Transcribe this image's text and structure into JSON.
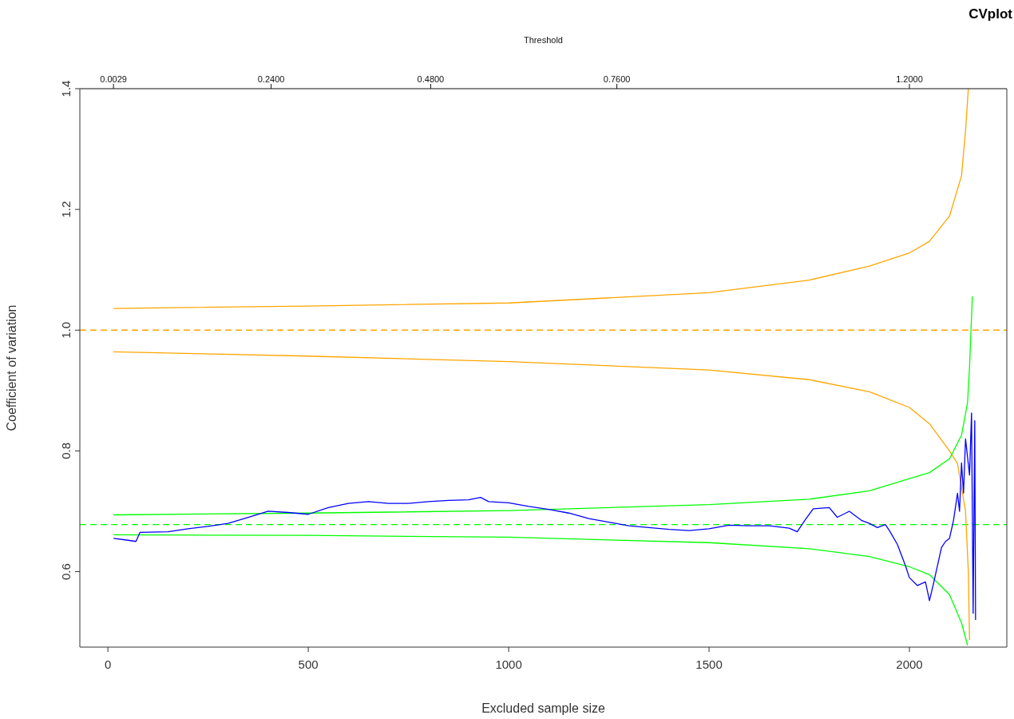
{
  "chart_data": {
    "type": "line",
    "title": "CVplot",
    "xlabel": "Excluded sample size",
    "ylabel": "Coefficient of variation",
    "x2label": "Threshold",
    "xlim": [
      -70,
      2243
    ],
    "xticks": [
      0,
      500,
      1000,
      1500,
      2000
    ],
    "x2lim": [
      -0.0477,
      1.3465
    ],
    "x2ticks": [
      {
        "value": 0.0029,
        "label": "0.0029"
      },
      {
        "value": 0.24,
        "label": "0.2400"
      },
      {
        "value": 0.48,
        "label": "0.4800"
      },
      {
        "value": 0.76,
        "label": "0.7600"
      },
      {
        "value": 1.2,
        "label": "1.2000"
      }
    ],
    "ylim": [
      0.475,
      1.4
    ],
    "yticks": [
      {
        "value": 0.6,
        "label": "0.6"
      },
      {
        "value": 0.8,
        "label": "0.8"
      },
      {
        "value": 1.0,
        "label": "1.0"
      },
      {
        "value": 1.2,
        "label": "1.2"
      },
      {
        "value": 1.4,
        "label": "1.4"
      }
    ],
    "grid": false,
    "legend": false,
    "marker": "none",
    "ref_lines": [
      {
        "axis": "y",
        "value": 1.0,
        "color": "#ffa500",
        "line_style": "dashed"
      },
      {
        "axis": "y",
        "value": 0.678,
        "color": "#00ff00",
        "line_style": "dashed"
      }
    ],
    "series": [
      {
        "color": "#ffa500",
        "x": [
          14,
          500,
          1000,
          1500,
          1750,
          1900,
          2000,
          2050,
          2100,
          2130,
          2140,
          2147
        ],
        "values": [
          1.036,
          1.04,
          1.045,
          1.062,
          1.083,
          1.106,
          1.128,
          1.147,
          1.189,
          1.256,
          1.33,
          1.4
        ]
      },
      {
        "color": "#ffa500",
        "x": [
          14,
          500,
          1000,
          1500,
          1750,
          1900,
          2000,
          2050,
          2100,
          2120,
          2140,
          2147,
          2150
        ],
        "values": [
          0.964,
          0.957,
          0.948,
          0.934,
          0.918,
          0.898,
          0.872,
          0.845,
          0.8,
          0.779,
          0.7,
          0.6,
          0.487
        ]
      },
      {
        "color": "#00ff00",
        "x": [
          14,
          500,
          1000,
          1500,
          1750,
          1900,
          2000,
          2050,
          2100,
          2130,
          2145,
          2150,
          2157
        ],
        "values": [
          0.694,
          0.697,
          0.701,
          0.711,
          0.72,
          0.734,
          0.754,
          0.764,
          0.787,
          0.826,
          0.88,
          0.939,
          1.056
        ]
      },
      {
        "color": "#00ff00",
        "x": [
          14,
          500,
          1000,
          1500,
          1750,
          1900,
          2000,
          2050,
          2100,
          2130,
          2145
        ],
        "values": [
          0.661,
          0.66,
          0.657,
          0.648,
          0.638,
          0.625,
          0.608,
          0.595,
          0.562,
          0.515,
          0.478
        ]
      },
      {
        "color": "#0000ff",
        "x": [
          14,
          50,
          70,
          80,
          150,
          200,
          250,
          300,
          350,
          400,
          450,
          500,
          550,
          600,
          650,
          700,
          750,
          800,
          850,
          900,
          930,
          950,
          1000,
          1050,
          1100,
          1150,
          1200,
          1250,
          1300,
          1350,
          1400,
          1450,
          1500,
          1550,
          1600,
          1650,
          1700,
          1720,
          1740,
          1760,
          1800,
          1820,
          1850,
          1880,
          1900,
          1920,
          1940,
          1950,
          1970,
          1990,
          2000,
          2020,
          2040,
          2050,
          2060,
          2080,
          2090,
          2100,
          2110,
          2120,
          2125,
          2130,
          2135,
          2140,
          2145,
          2150,
          2155,
          2159,
          2163,
          2165
        ],
        "values": [
          0.655,
          0.652,
          0.65,
          0.665,
          0.666,
          0.671,
          0.675,
          0.68,
          0.69,
          0.7,
          0.698,
          0.695,
          0.706,
          0.713,
          0.716,
          0.713,
          0.713,
          0.716,
          0.718,
          0.719,
          0.723,
          0.716,
          0.714,
          0.708,
          0.703,
          0.697,
          0.688,
          0.682,
          0.676,
          0.673,
          0.67,
          0.668,
          0.671,
          0.677,
          0.676,
          0.676,
          0.672,
          0.666,
          0.686,
          0.704,
          0.706,
          0.69,
          0.7,
          0.685,
          0.68,
          0.673,
          0.678,
          0.668,
          0.645,
          0.61,
          0.59,
          0.577,
          0.583,
          0.552,
          0.58,
          0.64,
          0.65,
          0.655,
          0.685,
          0.73,
          0.7,
          0.78,
          0.73,
          0.82,
          0.79,
          0.76,
          0.863,
          0.531,
          0.85,
          0.52
        ]
      }
    ]
  }
}
